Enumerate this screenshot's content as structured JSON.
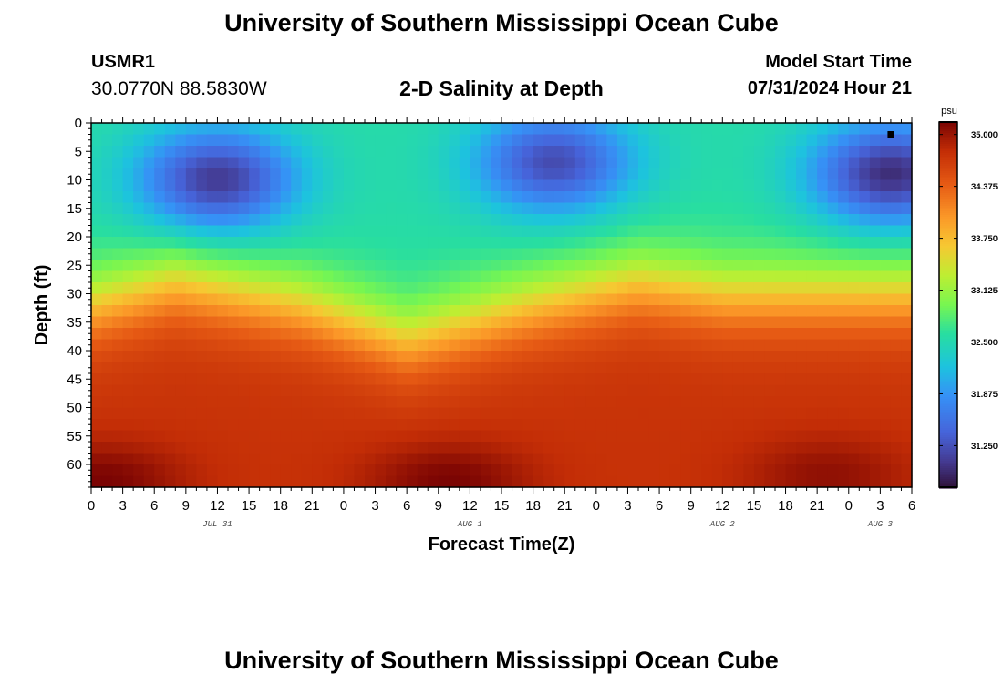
{
  "header": {
    "title": "University of Southern Mississippi Ocean Cube",
    "station_id": "USMR1",
    "station_coords": "30.0770N  88.5830W",
    "subtitle": "2-D Salinity at Depth",
    "model_start_label": "Model Start Time",
    "model_start_value": "07/31/2024 Hour 21"
  },
  "footer": {
    "title": "University of Southern Mississippi Ocean Cube"
  },
  "chart_data": {
    "type": "heatmap",
    "title": "2-D Salinity at Depth",
    "xlabel": "Forecast Time(Z)",
    "ylabel": "Depth (ft)",
    "x_hours_range": [
      0,
      78
    ],
    "y_range": [
      0,
      64
    ],
    "y_inverted": true,
    "x_tick_labels": [
      "0",
      "3",
      "6",
      "9",
      "12",
      "15",
      "18",
      "21",
      "0",
      "3",
      "6",
      "9",
      "12",
      "15",
      "18",
      "21",
      "0",
      "3",
      "6",
      "9",
      "12",
      "15",
      "18",
      "21",
      "0",
      "3",
      "6"
    ],
    "x_tick_hours": [
      0,
      3,
      6,
      9,
      12,
      15,
      18,
      21,
      24,
      27,
      30,
      33,
      36,
      39,
      42,
      45,
      48,
      51,
      54,
      57,
      60,
      63,
      66,
      69,
      72,
      75,
      78
    ],
    "date_labels": [
      {
        "text": "JUL 31",
        "hour": 12
      },
      {
        "text": "AUG 1",
        "hour": 36
      },
      {
        "text": "AUG 2",
        "hour": 60
      },
      {
        "text": "AUG 3",
        "hour": 75
      }
    ],
    "y_tick_labels": [
      "0",
      "5",
      "10",
      "15",
      "20",
      "25",
      "30",
      "35",
      "40",
      "45",
      "50",
      "55",
      "60"
    ],
    "y_tick_values": [
      0,
      5,
      10,
      15,
      20,
      25,
      30,
      35,
      40,
      45,
      50,
      55,
      60
    ],
    "colorbar": {
      "unit": "psu",
      "min": 30.75,
      "max": 35.15,
      "tick_labels": [
        "35.000",
        "34.375",
        "33.750",
        "33.125",
        "32.500",
        "31.875",
        "31.250"
      ],
      "tick_values": [
        35.0,
        34.375,
        33.75,
        33.125,
        32.5,
        31.875,
        31.25
      ]
    },
    "description_points": {
      "halocline_depth_ft_by_hour": [
        [
          0,
          32
        ],
        [
          8,
          28
        ],
        [
          20,
          32
        ],
        [
          30,
          38
        ],
        [
          42,
          32
        ],
        [
          52,
          28
        ],
        [
          60,
          30
        ],
        [
          72,
          30
        ],
        [
          78,
          30
        ]
      ],
      "surface_salinity_range": [
        31.0,
        32.8
      ],
      "bottom_salinity_range": [
        34.6,
        35.15
      ],
      "low_salinity_lenses": [
        {
          "center_hour": 12,
          "center_depth_ft": 10,
          "min_value": 31.05
        },
        {
          "center_hour": 44,
          "center_depth_ft": 7,
          "min_value": 31.2
        },
        {
          "center_hour": 76,
          "center_depth_ft": 9,
          "min_value": 30.95
        }
      ],
      "high_salinity_cores": [
        {
          "center_hour": 1,
          "center_depth_ft": 63,
          "max_value": 35.15
        },
        {
          "center_hour": 34,
          "center_depth_ft": 63,
          "max_value": 35.15
        },
        {
          "center_hour": 70,
          "center_depth_ft": 62,
          "max_value": 35.05
        }
      ],
      "marker": {
        "hour": 76,
        "depth_ft": 2
      }
    }
  }
}
